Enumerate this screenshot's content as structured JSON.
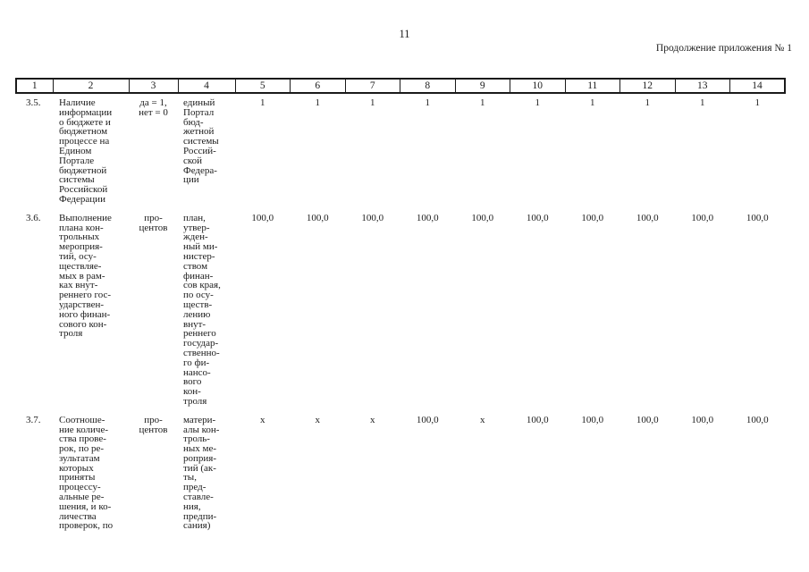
{
  "page": {
    "number": "11",
    "continuation_label": "Продолжение приложения № 1"
  },
  "table": {
    "column_numbers": [
      "1",
      "2",
      "3",
      "4",
      "5",
      "6",
      "7",
      "8",
      "9",
      "10",
      "11",
      "12",
      "13",
      "14"
    ],
    "rows": [
      {
        "index": "3.5.",
        "indicator": "Наличие\nинформации\nо бюджете и\nбюджетном\nпроцессе на\nЕдином\nПортале\nбюджетной\nсистемы\nРоссийской\nФедерации",
        "unit": "да = 1,\nнет = 0",
        "source": "единый\nПортал\nбюд-\nжетной\nсистемы\nРоссий-\nской\nФедера-\nции",
        "values": [
          "1",
          "1",
          "1",
          "1",
          "1",
          "1",
          "1",
          "1",
          "1",
          "1"
        ]
      },
      {
        "index": "3.6.",
        "indicator": "Выполнение\nплана кон-\nтрольных\nмероприя-\nтий, осу-\nществляе-\nмых в рам-\nках внут-\nреннего гос-\nударствен-\nного финан-\nсового кон-\nтроля",
        "unit": "про-\nцентов",
        "source": "план,\nутвер-\nжден-\nный ми-\nнистер-\nством\nфинан-\nсов края,\nпо осу-\nществ-\nлению\nвнут-\nреннего\nгосудар-\nственно-\nго фи-\nнансо-\nвого\nкон-\nтроля",
        "values": [
          "100,0",
          "100,0",
          "100,0",
          "100,0",
          "100,0",
          "100,0",
          "100,0",
          "100,0",
          "100,0",
          "100,0"
        ]
      },
      {
        "index": "3.7.",
        "indicator": "Соотноше-\nние количе-\nства прове-\nрок, по ре-\nзультатам\nкоторых\nприняты\nпроцессу-\nальные ре-\nшения, и ко-\nличества\nпроверок, по",
        "unit": "про-\nцентов",
        "source": "матери-\nалы кон-\nтроль-\nных ме-\nроприя-\nтий (ак-\nты,\nпред-\nставле-\nния,\nпредпи-\nсания)",
        "values": [
          "x",
          "x",
          "x",
          "100,0",
          "x",
          "100,0",
          "100,0",
          "100,0",
          "100,0",
          "100,0"
        ]
      }
    ]
  }
}
